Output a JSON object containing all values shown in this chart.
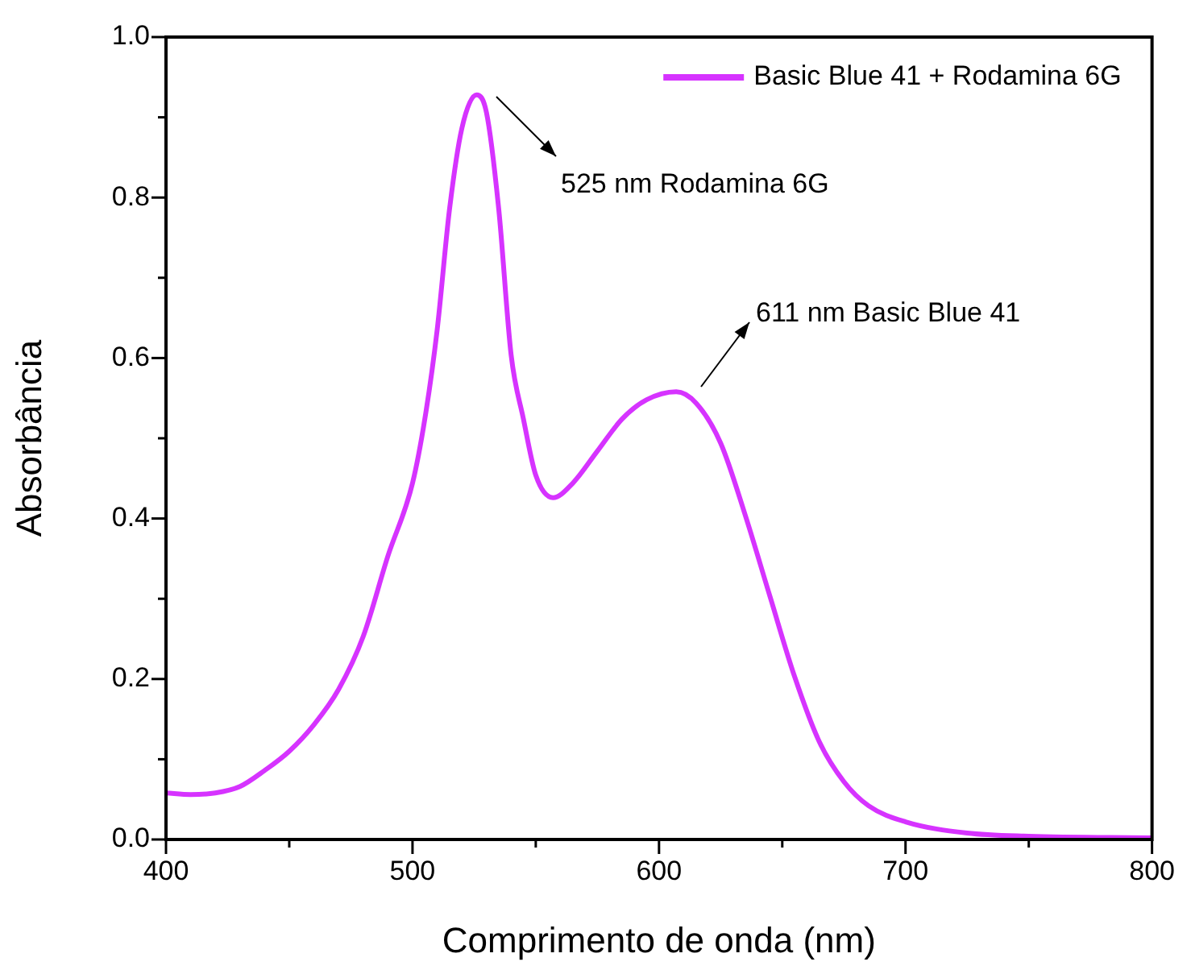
{
  "chart_data": {
    "type": "line",
    "xlabel": "Comprimento de onda (nm)",
    "ylabel": "Absorbância",
    "x": [
      400,
      410,
      420,
      430,
      440,
      450,
      460,
      470,
      480,
      490,
      500,
      505,
      510,
      515,
      520,
      526,
      530,
      535,
      540,
      545,
      550,
      557,
      565,
      575,
      585,
      595,
      607,
      615,
      625,
      635,
      645,
      655,
      665,
      675,
      685,
      700,
      725,
      750,
      800
    ],
    "series": [
      {
        "name": "Basic Blue 41 + Rodamina 6G",
        "color": "#d633ff",
        "values": [
          0.058,
          0.056,
          0.058,
          0.066,
          0.086,
          0.11,
          0.143,
          0.187,
          0.253,
          0.353,
          0.444,
          0.524,
          0.635,
          0.785,
          0.886,
          0.928,
          0.906,
          0.785,
          0.604,
          0.524,
          0.454,
          0.426,
          0.444,
          0.484,
          0.524,
          0.548,
          0.558,
          0.544,
          0.494,
          0.404,
          0.303,
          0.203,
          0.122,
          0.072,
          0.042,
          0.022,
          0.008,
          0.004,
          0.002
        ]
      }
    ],
    "xlim": [
      400,
      800
    ],
    "xticks": [
      400,
      {
        "value": 450,
        "label": null
      },
      500,
      {
        "value": 550,
        "label": null
      },
      600,
      {
        "value": 650,
        "label": null
      },
      700,
      {
        "value": 750,
        "label": null
      },
      800
    ],
    "ylim": [
      0,
      1
    ],
    "yticks": [
      {
        "value": 0,
        "label": "0.0"
      },
      {
        "value": 0.1,
        "label": null
      },
      0.2,
      {
        "value": 0.3,
        "label": null
      },
      0.4,
      {
        "value": 0.5,
        "label": null
      },
      0.6,
      {
        "value": 0.7,
        "label": null
      },
      0.8,
      {
        "value": 0.9,
        "label": null
      },
      {
        "value": 1,
        "label": "1.0"
      }
    ],
    "annotations": [
      "525 nm Rodamina 6G",
      "611 nm Basic Blue 41"
    ],
    "legend": "top right",
    "grid": false,
    "marker": "none",
    "line_style": "solid"
  }
}
